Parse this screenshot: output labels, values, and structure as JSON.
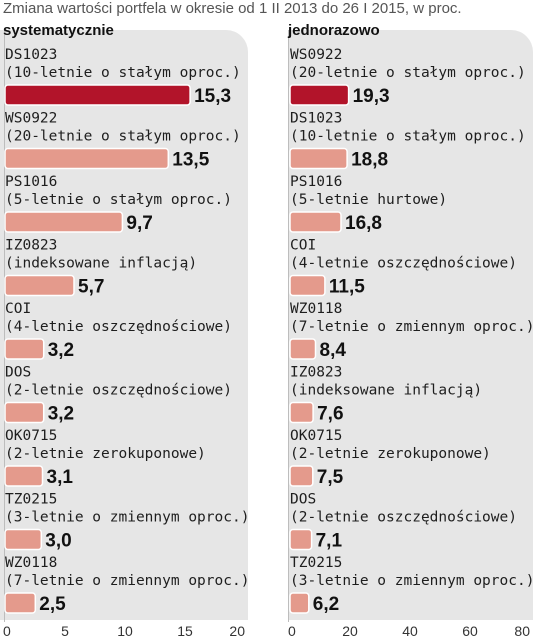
{
  "title": "Zmiana wartości portfela w okresie od 1 II 2013 do 26 I 2015, w proc.",
  "colors": {
    "highlight": "#b2142a",
    "bar": "#e49a8c",
    "panel": "#e6e6e6"
  },
  "chart_data": [
    {
      "type": "bar",
      "subtitle": "systematycznie",
      "categories": [
        [
          "DS1023",
          "(10-letnie o stałym oproc.)"
        ],
        [
          "WS0922",
          "(20-letnie o stałym oproc.)"
        ],
        [
          "PS1016",
          "(5-letnie o stałym oproc.)"
        ],
        [
          "IZ0823",
          "(indeksowane inflacją)"
        ],
        [
          "COI",
          "(4-letnie oszczędnościowe)"
        ],
        [
          "DOS",
          "(2-letnie oszczędnościowe)"
        ],
        [
          "OK0715",
          "(2-letnie zerokuponowe)"
        ],
        [
          "TZ0215",
          "(3-letnie o zmiennym oproc.)"
        ],
        [
          "WZ0118",
          "(7-letnie o zmiennym oproc.)"
        ]
      ],
      "values": [
        15.3,
        13.5,
        9.7,
        5.7,
        3.2,
        3.2,
        3.1,
        3.0,
        2.5
      ],
      "value_labels": [
        "15,3",
        "13,5",
        "9,7",
        "5,7",
        "3,2",
        "3,2",
        "3,1",
        "3,0",
        "2,5"
      ],
      "xlim": [
        0,
        20
      ],
      "xticks": [
        "0",
        "5",
        "10",
        "15",
        "20"
      ],
      "highlight_index": 0
    },
    {
      "type": "bar",
      "subtitle": "jednorazowo",
      "categories": [
        [
          "WS0922",
          "(20-letnie o stałym oproc.)"
        ],
        [
          "DS1023",
          "(10-letnie o stałym oproc.)"
        ],
        [
          "PS1016",
          "(5-letnie hurtowe)"
        ],
        [
          "COI",
          "(4-letnie oszczędnościowe)"
        ],
        [
          "WZ0118",
          "(7-letnie o zmiennym oproc.)"
        ],
        [
          "IZ0823",
          "(indeksowane inflacją)"
        ],
        [
          "OK0715",
          "(2-letnie zerokuponowe)"
        ],
        [
          "DOS",
          "(2-letnie oszczędnościowe)"
        ],
        [
          "TZ0215",
          "(3-letnie o zmiennym oproc.)"
        ]
      ],
      "values": [
        19.3,
        18.8,
        16.8,
        11.5,
        8.4,
        7.6,
        7.5,
        7.1,
        6.2
      ],
      "value_labels": [
        "19,3",
        "18,8",
        "16,8",
        "11,5",
        "8,4",
        "7,6",
        "7,5",
        "7,1",
        "6,2"
      ],
      "xlim": [
        0,
        80
      ],
      "xticks": [
        "0",
        "20",
        "40",
        "60",
        "80"
      ],
      "highlight_index": 0
    }
  ]
}
